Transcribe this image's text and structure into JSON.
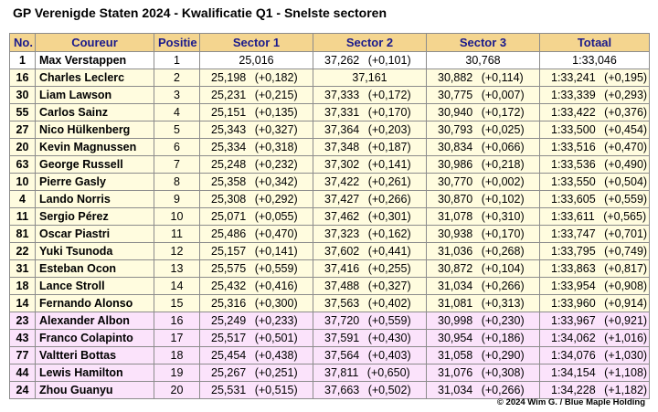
{
  "title": "GP Verenigde Staten 2024 - Kwalificatie Q1 - Snelste sectoren",
  "headers": [
    "No.",
    "Coureur",
    "Positie",
    "Sector 1",
    "Sector 2",
    "Sector 3",
    "Totaal"
  ],
  "colors": {
    "header_bg": "#f4d58f",
    "header_text": "#1a1a8c",
    "top_row_bg": "#ffffff",
    "advanced_bg": "#fffcdf",
    "eliminated_bg": "#fbe3fb",
    "border": "#8c8c8c"
  },
  "rows": [
    {
      "no": "1",
      "driver": "Max Verstappen",
      "pos": "1",
      "s1": "25,016",
      "s1_gap": "",
      "s2": "37,262",
      "s2_gap": "(+0,101)",
      "s3": "30,768",
      "s3_gap": "",
      "tot": "1:33,046",
      "tot_gap": ""
    },
    {
      "no": "16",
      "driver": "Charles Leclerc",
      "pos": "2",
      "s1": "25,198",
      "s1_gap": "(+0,182)",
      "s2": "37,161",
      "s2_gap": "",
      "s3": "30,882",
      "s3_gap": "(+0,114)",
      "tot": "1:33,241",
      "tot_gap": "(+0,195)"
    },
    {
      "no": "30",
      "driver": "Liam Lawson",
      "pos": "3",
      "s1": "25,231",
      "s1_gap": "(+0,215)",
      "s2": "37,333",
      "s2_gap": "(+0,172)",
      "s3": "30,775",
      "s3_gap": "(+0,007)",
      "tot": "1:33,339",
      "tot_gap": "(+0,293)"
    },
    {
      "no": "55",
      "driver": "Carlos Sainz",
      "pos": "4",
      "s1": "25,151",
      "s1_gap": "(+0,135)",
      "s2": "37,331",
      "s2_gap": "(+0,170)",
      "s3": "30,940",
      "s3_gap": "(+0,172)",
      "tot": "1:33,422",
      "tot_gap": "(+0,376)"
    },
    {
      "no": "27",
      "driver": "Nico Hülkenberg",
      "pos": "5",
      "s1": "25,343",
      "s1_gap": "(+0,327)",
      "s2": "37,364",
      "s2_gap": "(+0,203)",
      "s3": "30,793",
      "s3_gap": "(+0,025)",
      "tot": "1:33,500",
      "tot_gap": "(+0,454)"
    },
    {
      "no": "20",
      "driver": "Kevin Magnussen",
      "pos": "6",
      "s1": "25,334",
      "s1_gap": "(+0,318)",
      "s2": "37,348",
      "s2_gap": "(+0,187)",
      "s3": "30,834",
      "s3_gap": "(+0,066)",
      "tot": "1:33,516",
      "tot_gap": "(+0,470)"
    },
    {
      "no": "63",
      "driver": "George Russell",
      "pos": "7",
      "s1": "25,248",
      "s1_gap": "(+0,232)",
      "s2": "37,302",
      "s2_gap": "(+0,141)",
      "s3": "30,986",
      "s3_gap": "(+0,218)",
      "tot": "1:33,536",
      "tot_gap": "(+0,490)"
    },
    {
      "no": "10",
      "driver": "Pierre Gasly",
      "pos": "8",
      "s1": "25,358",
      "s1_gap": "(+0,342)",
      "s2": "37,422",
      "s2_gap": "(+0,261)",
      "s3": "30,770",
      "s3_gap": "(+0,002)",
      "tot": "1:33,550",
      "tot_gap": "(+0,504)"
    },
    {
      "no": "4",
      "driver": "Lando Norris",
      "pos": "9",
      "s1": "25,308",
      "s1_gap": "(+0,292)",
      "s2": "37,427",
      "s2_gap": "(+0,266)",
      "s3": "30,870",
      "s3_gap": "(+0,102)",
      "tot": "1:33,605",
      "tot_gap": "(+0,559)"
    },
    {
      "no": "11",
      "driver": "Sergio Pérez",
      "pos": "10",
      "s1": "25,071",
      "s1_gap": "(+0,055)",
      "s2": "37,462",
      "s2_gap": "(+0,301)",
      "s3": "31,078",
      "s3_gap": "(+0,310)",
      "tot": "1:33,611",
      "tot_gap": "(+0,565)"
    },
    {
      "no": "81",
      "driver": "Oscar Piastri",
      "pos": "11",
      "s1": "25,486",
      "s1_gap": "(+0,470)",
      "s2": "37,323",
      "s2_gap": "(+0,162)",
      "s3": "30,938",
      "s3_gap": "(+0,170)",
      "tot": "1:33,747",
      "tot_gap": "(+0,701)"
    },
    {
      "no": "22",
      "driver": "Yuki Tsunoda",
      "pos": "12",
      "s1": "25,157",
      "s1_gap": "(+0,141)",
      "s2": "37,602",
      "s2_gap": "(+0,441)",
      "s3": "31,036",
      "s3_gap": "(+0,268)",
      "tot": "1:33,795",
      "tot_gap": "(+0,749)"
    },
    {
      "no": "31",
      "driver": "Esteban Ocon",
      "pos": "13",
      "s1": "25,575",
      "s1_gap": "(+0,559)",
      "s2": "37,416",
      "s2_gap": "(+0,255)",
      "s3": "30,872",
      "s3_gap": "(+0,104)",
      "tot": "1:33,863",
      "tot_gap": "(+0,817)"
    },
    {
      "no": "18",
      "driver": "Lance Stroll",
      "pos": "14",
      "s1": "25,432",
      "s1_gap": "(+0,416)",
      "s2": "37,488",
      "s2_gap": "(+0,327)",
      "s3": "31,034",
      "s3_gap": "(+0,266)",
      "tot": "1:33,954",
      "tot_gap": "(+0,908)"
    },
    {
      "no": "14",
      "driver": "Fernando Alonso",
      "pos": "15",
      "s1": "25,316",
      "s1_gap": "(+0,300)",
      "s2": "37,563",
      "s2_gap": "(+0,402)",
      "s3": "31,081",
      "s3_gap": "(+0,313)",
      "tot": "1:33,960",
      "tot_gap": "(+0,914)"
    },
    {
      "no": "23",
      "driver": "Alexander Albon",
      "pos": "16",
      "s1": "25,249",
      "s1_gap": "(+0,233)",
      "s2": "37,720",
      "s2_gap": "(+0,559)",
      "s3": "30,998",
      "s3_gap": "(+0,230)",
      "tot": "1:33,967",
      "tot_gap": "(+0,921)"
    },
    {
      "no": "43",
      "driver": "Franco Colapinto",
      "pos": "17",
      "s1": "25,517",
      "s1_gap": "(+0,501)",
      "s2": "37,591",
      "s2_gap": "(+0,430)",
      "s3": "30,954",
      "s3_gap": "(+0,186)",
      "tot": "1:34,062",
      "tot_gap": "(+1,016)"
    },
    {
      "no": "77",
      "driver": "Valtteri Bottas",
      "pos": "18",
      "s1": "25,454",
      "s1_gap": "(+0,438)",
      "s2": "37,564",
      "s2_gap": "(+0,403)",
      "s3": "31,058",
      "s3_gap": "(+0,290)",
      "tot": "1:34,076",
      "tot_gap": "(+1,030)"
    },
    {
      "no": "44",
      "driver": "Lewis Hamilton",
      "pos": "19",
      "s1": "25,267",
      "s1_gap": "(+0,251)",
      "s2": "37,811",
      "s2_gap": "(+0,650)",
      "s3": "31,076",
      "s3_gap": "(+0,308)",
      "tot": "1:34,154",
      "tot_gap": "(+1,108)"
    },
    {
      "no": "24",
      "driver": "Zhou Guanyu",
      "pos": "20",
      "s1": "25,531",
      "s1_gap": "(+0,515)",
      "s2": "37,663",
      "s2_gap": "(+0,502)",
      "s3": "31,034",
      "s3_gap": "(+0,266)",
      "tot": "1:34,228",
      "tot_gap": "(+1,182)"
    }
  ],
  "footer": "© 2024 Wim G. / Blue Maple Holding"
}
